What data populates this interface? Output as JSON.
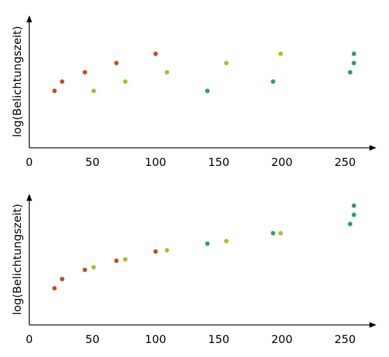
{
  "chart_data": [
    {
      "type": "scatter",
      "title": "",
      "xlabel": "",
      "ylabel": "log(Belichtungszeit)",
      "xlim": [
        0,
        270
      ],
      "xticks": [
        "0",
        "50",
        "100",
        "150",
        "200",
        "250"
      ],
      "yticks": [],
      "grid": false,
      "legend": "none",
      "points": [
        {
          "x": 20,
          "y": 0.43,
          "color": "#c0501a"
        },
        {
          "x": 26,
          "y": 0.5,
          "color": "#c0501a"
        },
        {
          "x": 44,
          "y": 0.57,
          "color": "#c0501a"
        },
        {
          "x": 69,
          "y": 0.64,
          "color": "#c0501a"
        },
        {
          "x": 100,
          "y": 0.71,
          "color": "#c0501a"
        },
        {
          "x": 51,
          "y": 0.43,
          "color": "#a8c028"
        },
        {
          "x": 76,
          "y": 0.5,
          "color": "#a8c028"
        },
        {
          "x": 109,
          "y": 0.57,
          "color": "#a8c028"
        },
        {
          "x": 156,
          "y": 0.64,
          "color": "#a8c028"
        },
        {
          "x": 199,
          "y": 0.71,
          "color": "#a8c028"
        },
        {
          "x": 141,
          "y": 0.43,
          "color": "#2ea05a"
        },
        {
          "x": 193,
          "y": 0.5,
          "color": "#2ea05a"
        },
        {
          "x": 254,
          "y": 0.57,
          "color": "#2ea05a"
        },
        {
          "x": 257,
          "y": 0.64,
          "color": "#2ea05a"
        },
        {
          "x": 257,
          "y": 0.71,
          "color": "#2ea05a"
        }
      ]
    },
    {
      "type": "scatter",
      "title": "",
      "xlabel": "",
      "ylabel": "log(Belichtungszeit)",
      "xlim": [
        0,
        270
      ],
      "xticks": [
        "0",
        "50",
        "100",
        "150",
        "200",
        "250"
      ],
      "yticks": [],
      "grid": false,
      "legend": "none",
      "points": [
        {
          "x": 20,
          "y": 0.28,
          "color": "#c0501a"
        },
        {
          "x": 26,
          "y": 0.35,
          "color": "#c0501a"
        },
        {
          "x": 44,
          "y": 0.42,
          "color": "#c0501a"
        },
        {
          "x": 69,
          "y": 0.49,
          "color": "#c0501a"
        },
        {
          "x": 100,
          "y": 0.56,
          "color": "#c0501a"
        },
        {
          "x": 51,
          "y": 0.44,
          "color": "#a8c028"
        },
        {
          "x": 76,
          "y": 0.5,
          "color": "#a8c028"
        },
        {
          "x": 109,
          "y": 0.57,
          "color": "#a8c028"
        },
        {
          "x": 156,
          "y": 0.64,
          "color": "#a8c028"
        },
        {
          "x": 199,
          "y": 0.7,
          "color": "#a8c028"
        },
        {
          "x": 141,
          "y": 0.62,
          "color": "#2ea05a"
        },
        {
          "x": 193,
          "y": 0.7,
          "color": "#2ea05a"
        },
        {
          "x": 254,
          "y": 0.77,
          "color": "#2ea05a"
        },
        {
          "x": 257,
          "y": 0.84,
          "color": "#2ea05a"
        },
        {
          "x": 257,
          "y": 0.91,
          "color": "#2ea05a"
        }
      ]
    }
  ]
}
